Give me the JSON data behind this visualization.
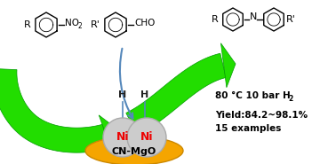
{
  "bg_color": "#ffffff",
  "green_bright": "#22dd00",
  "green_dark": "#009900",
  "ni_color": "#cccccc",
  "ni_edge_color": "#aaaaaa",
  "ni_text_color": "#ee0000",
  "support_color": "#f5a500",
  "support_edge_color": "#cc8800",
  "blue_line_color": "#5588bb",
  "text_color": "#111111",
  "label_yield": "Yield:84.2~98.1%",
  "label_examples": "15 examples",
  "label_CN_MgO": "CN-MgO",
  "label_Ni": "Ni",
  "label_H": "H"
}
